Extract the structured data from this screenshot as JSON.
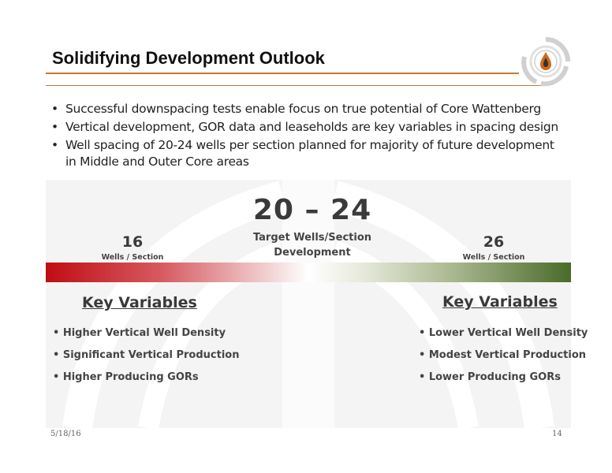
{
  "slide": {
    "title": "Solidifying Development Outlook",
    "bullets": [
      "Successful downspacing tests enable focus on true potential of Core Wattenberg",
      "Vertical development, GOR data and leaseholds are key variables in spacing design",
      "Well spacing of 20-24 wells per section planned for majority of future development in Middle and Outer Core areas"
    ],
    "bullet_char": "•"
  },
  "scale": {
    "center_range": "20 – 24",
    "center_label": "Target Wells/Section Development",
    "left_value": "16",
    "left_unit": "Wells / Section",
    "right_value": "26",
    "right_unit": "Wells / Section",
    "left_color": "#c00d14",
    "right_color": "#4a6b2a"
  },
  "left_variables": {
    "heading": "Key Variables",
    "items": [
      "• Higher Vertical Well Density",
      "• Significant Vertical Production",
      "• Higher Producing GORs"
    ]
  },
  "right_variables": {
    "heading": "Key Variables",
    "items": [
      "• Lower Vertical Well Density",
      "• Modest Vertical Production",
      "• Lower Producing GORs"
    ]
  },
  "footer": {
    "date": "5/18/16",
    "page": "14"
  },
  "colors": {
    "accent": "#c87a33",
    "logo_flame": "#d2691e"
  },
  "icons": {
    "logo": "company-logo-flame-icon"
  }
}
